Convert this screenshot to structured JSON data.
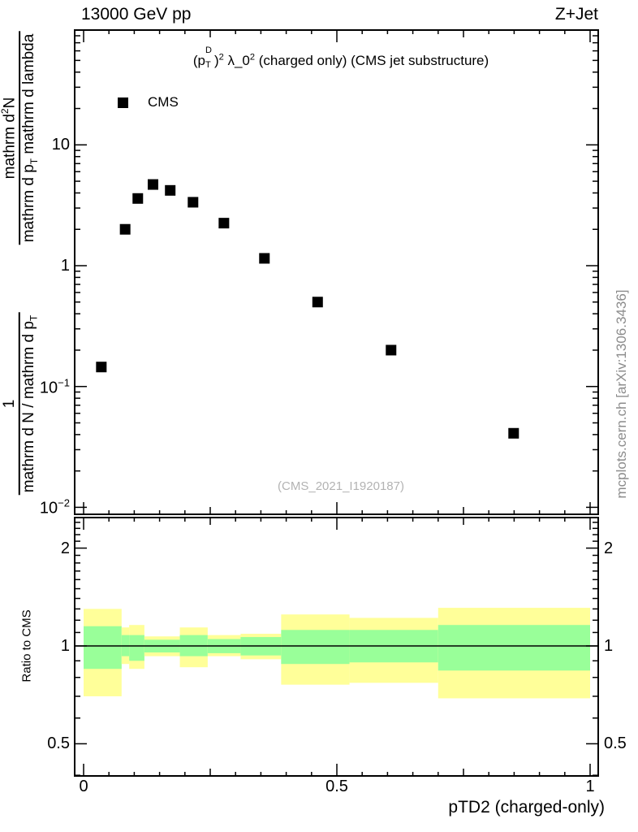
{
  "header": {
    "left": "13000 GeV pp",
    "right": "Z+Jet"
  },
  "title": {
    "part1": "(p",
    "p_sup": "D",
    "p_sub": "T",
    "part2": ")",
    "exp1": "2",
    "part3": " λ_0",
    "exp2": "2",
    "part4": " (charged only) (CMS jet substructure)"
  },
  "legend": {
    "label": "CMS",
    "marker_color": "#000000"
  },
  "watermark": "(CMS_2021_I1920187)",
  "credit": "mcplots.cern.ch [arXiv:1306.3436]",
  "ylabel": {
    "upper": {
      "num_pre": "mathrm d",
      "num_sup": "2",
      "num_post": "N",
      "den_pre": "mathrm d p",
      "den_sub": "T",
      "den_post": " mathrm d lambda"
    },
    "lower": {
      "num": "1",
      "den_pre": "mathrm d N / mathrm d p",
      "den_sub": "T"
    }
  },
  "ratio_ylabel": "Ratio to CMS",
  "xlabel": "pTD2 (charged-only)",
  "chart_data": {
    "type": "scatter",
    "title": "(p_T^D)^2 λ_0^2 (charged only) (CMS jet substructure)",
    "xlabel": "pTD2 (charged-only)",
    "ylabel": "1 / (mathrm d N / mathrm d p_T) · mathrm d²N / (mathrm d p_T mathrm d lambda)",
    "legend_position": "top-left",
    "grid": false,
    "x_range": [
      -0.018,
      1.016
    ],
    "main_y": {
      "scale": "log",
      "range": [
        0.0088,
        89
      ],
      "ticks": [
        {
          "value": 10,
          "base": "10",
          "exp": ""
        },
        {
          "value": 1,
          "base": "1",
          "exp": ""
        },
        {
          "value": 0.1,
          "base": "10",
          "exp": "−1"
        },
        {
          "value": 0.01,
          "base": "10",
          "exp": "−2"
        }
      ]
    },
    "ratio_y": {
      "scale": "log",
      "range": [
        0.398,
        2.48
      ],
      "ticks": [
        {
          "value": 2,
          "label": "2"
        },
        {
          "value": 1,
          "label": "1"
        },
        {
          "value": 0.5,
          "label": "0.5"
        }
      ]
    },
    "x_ticks": [
      {
        "value": 0,
        "label": "0"
      },
      {
        "value": 0.5,
        "label": "0.5"
      },
      {
        "value": 1,
        "label": "1"
      }
    ],
    "series": [
      {
        "name": "CMS",
        "marker": "filled-square",
        "color": "#000000",
        "points": [
          [
            0.035,
            0.145
          ],
          [
            0.082,
            2.0
          ],
          [
            0.107,
            3.6
          ],
          [
            0.137,
            4.7
          ],
          [
            0.171,
            4.2
          ],
          [
            0.216,
            3.35
          ],
          [
            0.277,
            2.25
          ],
          [
            0.357,
            1.15
          ],
          [
            0.462,
            0.5
          ],
          [
            0.607,
            0.2
          ],
          [
            0.849,
            0.041
          ]
        ]
      }
    ],
    "ratio_reference": 1,
    "band_colors": {
      "outer": "#ffff99",
      "inner": "#99ff99"
    },
    "ratio_bands": [
      {
        "x_lo": 0.0,
        "x_hi": 0.075,
        "yellow_lo": 0.7,
        "yellow_hi": 1.3,
        "green_lo": 0.85,
        "green_hi": 1.15
      },
      {
        "x_lo": 0.075,
        "x_hi": 0.09,
        "yellow_lo": 0.88,
        "yellow_hi": 1.14,
        "green_lo": 0.93,
        "green_hi": 1.08
      },
      {
        "x_lo": 0.09,
        "x_hi": 0.12,
        "yellow_lo": 0.85,
        "yellow_hi": 1.16,
        "green_lo": 0.9,
        "green_hi": 1.08
      },
      {
        "x_lo": 0.12,
        "x_hi": 0.19,
        "yellow_lo": 0.93,
        "yellow_hi": 1.07,
        "green_lo": 0.955,
        "green_hi": 1.045
      },
      {
        "x_lo": 0.19,
        "x_hi": 0.245,
        "yellow_lo": 0.86,
        "yellow_hi": 1.14,
        "green_lo": 0.93,
        "green_hi": 1.08
      },
      {
        "x_lo": 0.245,
        "x_hi": 0.31,
        "yellow_lo": 0.93,
        "yellow_hi": 1.08,
        "green_lo": 0.95,
        "green_hi": 1.05
      },
      {
        "x_lo": 0.31,
        "x_hi": 0.39,
        "yellow_lo": 0.91,
        "yellow_hi": 1.09,
        "green_lo": 0.935,
        "green_hi": 1.065
      },
      {
        "x_lo": 0.39,
        "x_hi": 0.525,
        "yellow_lo": 0.76,
        "yellow_hi": 1.25,
        "green_lo": 0.88,
        "green_hi": 1.12
      },
      {
        "x_lo": 0.525,
        "x_hi": 0.7,
        "yellow_lo": 0.77,
        "yellow_hi": 1.22,
        "green_lo": 0.89,
        "green_hi": 1.12
      },
      {
        "x_lo": 0.7,
        "x_hi": 1.0,
        "yellow_lo": 0.69,
        "yellow_hi": 1.31,
        "green_lo": 0.84,
        "green_hi": 1.16
      }
    ]
  }
}
